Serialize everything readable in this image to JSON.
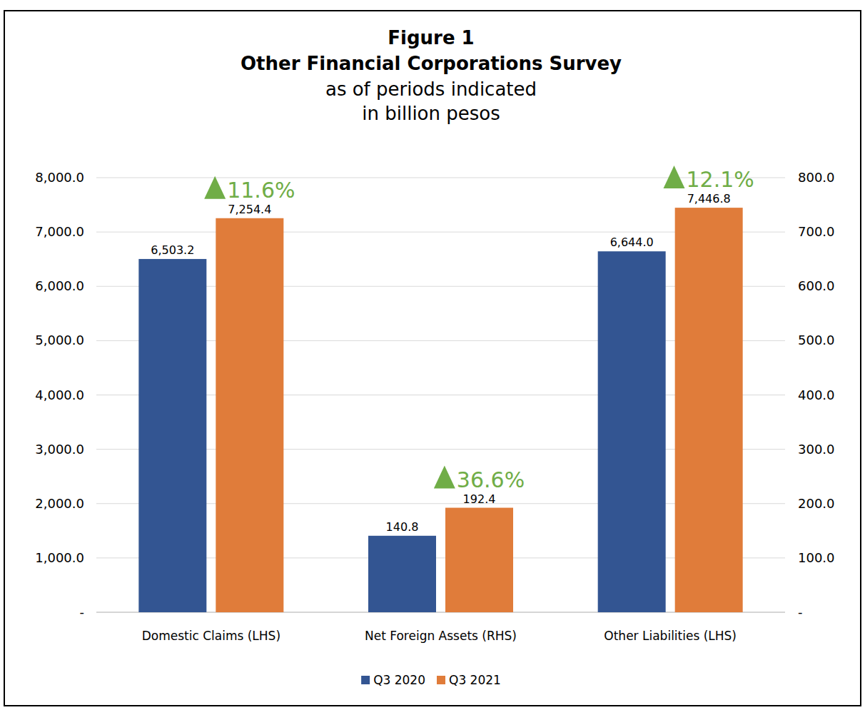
{
  "chart_data": {
    "type": "bar",
    "title": [
      "Figure 1",
      "Other Financial Corporations Survey"
    ],
    "subtitle": [
      "as of periods indicated",
      "in billion pesos"
    ],
    "categories": [
      "Domestic Claims (LHS)",
      "Net Foreign Assets (RHS)",
      "Other Liabilities (LHS)"
    ],
    "series": [
      {
        "name": "Q3 2020",
        "color": "#335592",
        "values": [
          6503.2,
          null,
          6644.0
        ],
        "value_labels": [
          "6,503.2",
          null,
          "6,644.0"
        ]
      },
      {
        "name": "Q3 2021",
        "color": "#e07c3a",
        "values": [
          7254.4,
          null,
          7446.8
        ],
        "value_labels": [
          "7,254.4",
          null,
          "7,446.8"
        ]
      },
      {
        "name": "Q3 2020",
        "color": "#335592",
        "axis": "y2",
        "values": [
          null,
          140.8,
          null
        ],
        "value_labels": [
          null,
          "140.8",
          null
        ]
      },
      {
        "name": "Q3 2021",
        "color": "#e07c3a",
        "axis": "y2",
        "values": [
          null,
          192.4,
          null
        ],
        "value_labels": [
          null,
          "192.4",
          null
        ]
      }
    ],
    "annotations": [
      "11.6%",
      "36.6%",
      "12.1%"
    ],
    "ylim": [
      0,
      8000
    ],
    "yticks": [
      {
        "value": 0,
        "label": "-"
      },
      {
        "value": 1000,
        "label": "1,000.0"
      },
      {
        "value": 2000,
        "label": "2,000.0"
      },
      {
        "value": 3000,
        "label": "3,000.0"
      },
      {
        "value": 4000,
        "label": "4,000.0"
      },
      {
        "value": 5000,
        "label": "5,000.0"
      },
      {
        "value": 6000,
        "label": "6,000.0"
      },
      {
        "value": 7000,
        "label": "7,000.0"
      },
      {
        "value": 8000,
        "label": "8,000.0"
      }
    ],
    "y2lim": [
      0,
      800
    ],
    "y2ticks": [
      {
        "value": 0,
        "label": "-"
      },
      {
        "value": 100,
        "label": "100.0"
      },
      {
        "value": 200,
        "label": "200.0"
      },
      {
        "value": 300,
        "label": "300.0"
      },
      {
        "value": 400,
        "label": "400.0"
      },
      {
        "value": 500,
        "label": "500.0"
      },
      {
        "value": 600,
        "label": "600.0"
      },
      {
        "value": 700,
        "label": "700.0"
      },
      {
        "value": 800,
        "label": "800.0"
      }
    ],
    "grid": true,
    "legend": "bottom",
    "data_labels": true
  }
}
